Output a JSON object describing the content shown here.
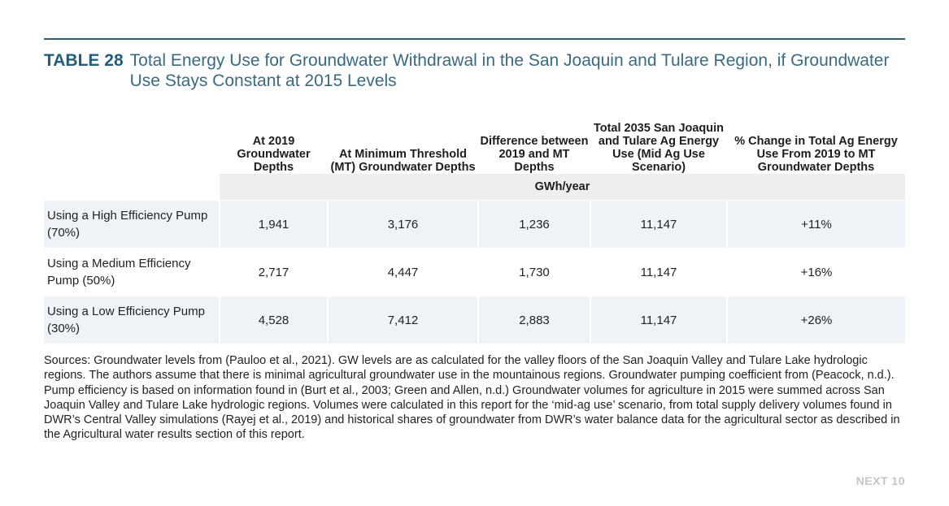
{
  "title": {
    "label": "TABLE 28",
    "text": "Total Energy Use for Groundwater Withdrawal in the San Joaquin and Tulare Region, if Groundwater Use Stays Constant at 2015 Levels"
  },
  "table": {
    "columns": [
      "",
      "At 2019 Groundwater Depths",
      "At Minimum Threshold (MT) Groundwater Depths",
      "Difference between 2019 and MT Depths",
      "Total 2035 San Joaquin and Tulare Ag Energy Use (Mid Ag Use Scenario)",
      "% Change in Total Ag Energy Use From 2019 to MT Groundwater Depths"
    ],
    "unit": "GWh/year",
    "rows": [
      {
        "label": "Using a High Efficiency Pump (70%)",
        "values": [
          "1,941",
          "3,176",
          "1,236",
          "11,147",
          "+11%"
        ]
      },
      {
        "label": "Using a Medium Efficiency Pump (50%)",
        "values": [
          "2,717",
          "4,447",
          "1,730",
          "11,147",
          "+16%"
        ]
      },
      {
        "label": "Using a Low Efficiency Pump (30%)",
        "values": [
          "4,528",
          "7,412",
          "2,883",
          "11,147",
          "+26%"
        ]
      }
    ]
  },
  "sources": "Sources: Groundwater levels from (Pauloo et al., 2021). GW levels are as calculated for the valley floors of the San Joaquin Valley and Tulare Lake hydrologic regions. The authors assume that there is minimal agricultural groundwater use in the mountainous regions. Groundwater pumping coefficient from (Peacock, n.d.). Pump efficiency is based on information found in (Burt et al., 2003; Green and Allen, n.d.) Groundwater volumes for agriculture in 2015 were summed across San Joaquin Valley and Tulare Lake hydrologic regions. Volumes were calculated in this report for the ‘mid-ag use’ scenario, from total supply delivery volumes found in DWR’s Central Valley simulations (Rayej et al., 2019) and historical shares of groundwater from DWR’s water balance data for the agricultural sector as described in the Agricultural water results section of this report.",
  "footer": "NEXT 10",
  "colors": {
    "accent": "#215e7c",
    "row_shade": "#edf3f7",
    "unit_shade": "#eeeeee"
  }
}
